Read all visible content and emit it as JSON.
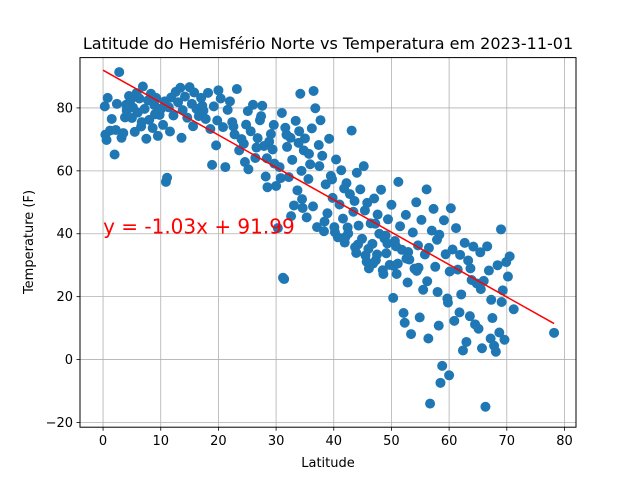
{
  "chart_data": {
    "type": "scatter",
    "title": "Latitude do Hemisfério Norte vs Temperatura em 2023-11-01",
    "xlabel": "Latitude",
    "ylabel": "Temperature (F)",
    "xlim": [
      -4,
      82
    ],
    "ylim": [
      -21.5,
      96
    ],
    "xticks": [
      0,
      10,
      20,
      30,
      40,
      50,
      60,
      70,
      80
    ],
    "yticks": [
      -20,
      0,
      20,
      40,
      60,
      80
    ],
    "grid": true,
    "point_color": "#1f77b4",
    "regression": {
      "slope": -1.03,
      "intercept": 91.99,
      "x_range": [
        0,
        78.2
      ],
      "color": "#ff0000",
      "equation_label": "y = -1.03x + 91.99",
      "label_position": [
        0,
        40
      ]
    },
    "points": [
      [
        0.3,
        80.5
      ],
      [
        0.4,
        71.5
      ],
      [
        0.6,
        69.8
      ],
      [
        0.8,
        83.2
      ],
      [
        1.2,
        72.8
      ],
      [
        1.5,
        76.5
      ],
      [
        2.0,
        65.2
      ],
      [
        2.4,
        81.3
      ],
      [
        2.8,
        91.4
      ],
      [
        3.2,
        70.5
      ],
      [
        3.5,
        72.0
      ],
      [
        3.8,
        77.0
      ],
      [
        4.1,
        79.2
      ],
      [
        4.5,
        83.8
      ],
      [
        4.8,
        82.6
      ],
      [
        5.0,
        76.8
      ],
      [
        5.2,
        80.1
      ],
      [
        5.5,
        72.4
      ],
      [
        5.8,
        84.7
      ],
      [
        6.0,
        78.5
      ],
      [
        6.3,
        83.0
      ],
      [
        6.6,
        74.1
      ],
      [
        6.9,
        86.8
      ],
      [
        7.2,
        79.7
      ],
      [
        7.5,
        70.2
      ],
      [
        7.8,
        82.4
      ],
      [
        8.0,
        76.2
      ],
      [
        8.3,
        84.5
      ],
      [
        8.6,
        73.6
      ],
      [
        8.9,
        80.9
      ],
      [
        9.2,
        83.2
      ],
      [
        9.5,
        71.1
      ],
      [
        9.8,
        77.8
      ],
      [
        10.1,
        79.8
      ],
      [
        10.4,
        74.6
      ],
      [
        10.7,
        82.1
      ],
      [
        10.9,
        56.5
      ],
      [
        11.1,
        57.8
      ],
      [
        11.4,
        80.2
      ],
      [
        11.8,
        83.3
      ],
      [
        12.2,
        77.6
      ],
      [
        12.6,
        85.1
      ],
      [
        13.0,
        81.8
      ],
      [
        13.4,
        86.4
      ],
      [
        13.8,
        79.3
      ],
      [
        14.2,
        83.6
      ],
      [
        14.6,
        76.9
      ],
      [
        15.0,
        86.6
      ],
      [
        15.4,
        81.3
      ],
      [
        15.8,
        84.9
      ],
      [
        16.2,
        79.7
      ],
      [
        16.6,
        77.4
      ],
      [
        17.0,
        83.2
      ],
      [
        17.4,
        79.1
      ],
      [
        17.8,
        76.5
      ],
      [
        18.2,
        84.8
      ],
      [
        18.6,
        73.3
      ],
      [
        18.9,
        61.9
      ],
      [
        19.2,
        80.5
      ],
      [
        19.6,
        68.1
      ],
      [
        20.0,
        85.6
      ],
      [
        20.4,
        83.0
      ],
      [
        20.8,
        73.9
      ],
      [
        21.2,
        61.2
      ],
      [
        21.6,
        79.4
      ],
      [
        22.0,
        82.1
      ],
      [
        22.4,
        75.5
      ],
      [
        22.8,
        71.6
      ],
      [
        23.2,
        86.0
      ],
      [
        23.6,
        66.5
      ],
      [
        24.0,
        70.1
      ],
      [
        24.4,
        68.6
      ],
      [
        24.8,
        74.7
      ],
      [
        25.2,
        60.5
      ],
      [
        25.6,
        72.6
      ],
      [
        26.0,
        81.0
      ],
      [
        26.4,
        64.1
      ],
      [
        26.8,
        70.4
      ],
      [
        27.2,
        76.1
      ],
      [
        27.6,
        80.7
      ],
      [
        27.9,
        67.9
      ],
      [
        28.2,
        58.2
      ],
      [
        28.5,
        54.8
      ],
      [
        28.8,
        69.3
      ],
      [
        29.1,
        71.7
      ],
      [
        29.4,
        66.8
      ],
      [
        29.7,
        62.3
      ],
      [
        30.0,
        55.2
      ],
      [
        30.3,
        41.8
      ],
      [
        30.6,
        61.2
      ],
      [
        31.0,
        78.4
      ],
      [
        31.2,
        26.0
      ],
      [
        31.4,
        25.6
      ],
      [
        31.6,
        73.7
      ],
      [
        31.9,
        67.6
      ],
      [
        32.2,
        58.0
      ],
      [
        32.5,
        70.5
      ],
      [
        32.8,
        63.5
      ],
      [
        33.1,
        49.0
      ],
      [
        33.4,
        75.9
      ],
      [
        33.7,
        53.8
      ],
      [
        34.0,
        72.6
      ],
      [
        34.2,
        84.5
      ],
      [
        34.4,
        60.0
      ],
      [
        34.6,
        48.2
      ],
      [
        34.8,
        66.5
      ],
      [
        35.0,
        70.3
      ],
      [
        35.3,
        45.2
      ],
      [
        35.6,
        57.4
      ],
      [
        35.9,
        62.1
      ],
      [
        36.2,
        73.5
      ],
      [
        36.5,
        85.4
      ],
      [
        36.8,
        79.9
      ],
      [
        37.1,
        42.1
      ],
      [
        37.4,
        68.2
      ],
      [
        37.7,
        76.1
      ],
      [
        38.0,
        64.8
      ],
      [
        38.3,
        40.8
      ],
      [
        38.6,
        55.7
      ],
      [
        38.9,
        46.5
      ],
      [
        39.2,
        70.2
      ],
      [
        39.5,
        58.4
      ],
      [
        39.8,
        51.4
      ],
      [
        40.1,
        42.1
      ],
      [
        40.4,
        63.6
      ],
      [
        40.7,
        38.9
      ],
      [
        41.0,
        49.3
      ],
      [
        41.3,
        60.2
      ],
      [
        41.6,
        44.8
      ],
      [
        41.9,
        37.2
      ],
      [
        42.2,
        56.1
      ],
      [
        42.5,
        40.1
      ],
      [
        42.8,
        52.6
      ],
      [
        43.1,
        72.8
      ],
      [
        43.4,
        47.0
      ],
      [
        43.7,
        35.7
      ],
      [
        44.0,
        59.4
      ],
      [
        44.3,
        42.6
      ],
      [
        44.6,
        54.1
      ],
      [
        44.9,
        38.4
      ],
      [
        45.2,
        61.5
      ],
      [
        45.5,
        33.1
      ],
      [
        45.8,
        49.8
      ],
      [
        46.1,
        29.0
      ],
      [
        46.4,
        43.3
      ],
      [
        46.7,
        36.8
      ],
      [
        47.0,
        51.2
      ],
      [
        47.3,
        31.6
      ],
      [
        47.6,
        46.1
      ],
      [
        47.9,
        40.0
      ],
      [
        48.2,
        54.0
      ],
      [
        48.5,
        28.4
      ],
      [
        48.8,
        38.5
      ],
      [
        49.1,
        33.8
      ],
      [
        49.4,
        44.6
      ],
      [
        49.7,
        30.1
      ],
      [
        50.0,
        49.2
      ],
      [
        50.3,
        19.6
      ],
      [
        50.6,
        37.7
      ],
      [
        50.9,
        27.2
      ],
      [
        51.2,
        56.5
      ],
      [
        51.5,
        42.4
      ],
      [
        51.8,
        34.9
      ],
      [
        52.1,
        14.8
      ],
      [
        52.3,
        11.7
      ],
      [
        52.5,
        46.0
      ],
      [
        52.8,
        24.5
      ],
      [
        53.1,
        31.8
      ],
      [
        53.4,
        8.1
      ],
      [
        53.7,
        40.4
      ],
      [
        54.0,
        28.9
      ],
      [
        54.3,
        50.0
      ],
      [
        54.6,
        36.3
      ],
      [
        54.9,
        13.4
      ],
      [
        55.2,
        44.4
      ],
      [
        55.5,
        22.2
      ],
      [
        55.8,
        33.4
      ],
      [
        56.1,
        54.1
      ],
      [
        56.4,
        6.7
      ],
      [
        56.7,
        -14.0
      ],
      [
        57.0,
        41.0
      ],
      [
        57.3,
        47.9
      ],
      [
        57.6,
        29.5
      ],
      [
        57.9,
        38.1
      ],
      [
        58.2,
        10.8
      ],
      [
        58.5,
        -7.4
      ],
      [
        58.8,
        -2.0
      ],
      [
        59.1,
        44.3
      ],
      [
        59.4,
        33.5
      ],
      [
        59.7,
        19.4
      ],
      [
        60.0,
        -5.0
      ],
      [
        60.3,
        48.1
      ],
      [
        60.6,
        35.0
      ],
      [
        60.9,
        12.3
      ],
      [
        61.2,
        41.8
      ],
      [
        61.5,
        28.6
      ],
      [
        61.8,
        15.0
      ],
      [
        62.1,
        20.7
      ],
      [
        62.4,
        2.9
      ],
      [
        62.7,
        37.1
      ],
      [
        63.0,
        5.6
      ],
      [
        63.3,
        31.5
      ],
      [
        63.6,
        13.8
      ],
      [
        63.9,
        25.3
      ],
      [
        64.2,
        35.9
      ],
      [
        64.5,
        11.2
      ],
      [
        64.8,
        24.2
      ],
      [
        65.1,
        9.8
      ],
      [
        65.4,
        34.1
      ],
      [
        65.7,
        3.6
      ],
      [
        66.0,
        25.0
      ],
      [
        66.3,
        -15.0
      ],
      [
        66.6,
        36.0
      ],
      [
        66.9,
        28.3
      ],
      [
        67.2,
        6.7
      ],
      [
        67.5,
        13.2
      ],
      [
        67.8,
        4.4
      ],
      [
        68.1,
        2.5
      ],
      [
        68.4,
        30.0
      ],
      [
        68.7,
        8.6
      ],
      [
        69.0,
        41.4
      ],
      [
        69.3,
        22.0
      ],
      [
        69.6,
        6.3
      ],
      [
        69.9,
        31.0
      ],
      [
        70.2,
        26.4
      ],
      [
        70.5,
        32.8
      ],
      [
        71.2,
        16.0
      ],
      [
        78.2,
        8.5
      ],
      [
        2.2,
        73.0
      ],
      [
        4.0,
        81.0
      ],
      [
        6.7,
        75.5
      ],
      [
        9.0,
        78.0
      ],
      [
        11.6,
        72.5
      ],
      [
        13.6,
        70.5
      ],
      [
        15.6,
        74.2
      ],
      [
        17.2,
        80.7
      ],
      [
        19.8,
        76.0
      ],
      [
        22.6,
        74.1
      ],
      [
        24.6,
        62.8
      ],
      [
        26.6,
        67.4
      ],
      [
        28.4,
        64.0
      ],
      [
        30.8,
        57.7
      ],
      [
        32.6,
        45.6
      ],
      [
        34.5,
        51.0
      ],
      [
        36.4,
        48.7
      ],
      [
        38.4,
        43.9
      ],
      [
        40.2,
        40.5
      ],
      [
        42.0,
        38.9
      ],
      [
        43.9,
        33.9
      ],
      [
        45.7,
        31.1
      ],
      [
        47.5,
        33.4
      ],
      [
        49.3,
        36.9
      ],
      [
        51.1,
        30.5
      ],
      [
        52.9,
        34.2
      ],
      [
        54.7,
        29.2
      ],
      [
        56.5,
        35.5
      ],
      [
        58.3,
        39.7
      ],
      [
        60.1,
        28.0
      ],
      [
        61.9,
        33.3
      ],
      [
        63.7,
        29.0
      ],
      [
        65.5,
        22.4
      ],
      [
        67.3,
        19.0
      ],
      [
        69.1,
        18.3
      ],
      [
        25.1,
        79.0
      ],
      [
        27.4,
        77.4
      ],
      [
        29.6,
        74.6
      ],
      [
        31.8,
        71.5
      ],
      [
        33.9,
        68.9
      ],
      [
        35.7,
        65.4
      ],
      [
        37.5,
        61.5
      ],
      [
        39.7,
        57.3
      ],
      [
        41.8,
        54.4
      ],
      [
        43.6,
        50.4
      ],
      [
        45.4,
        47.4
      ],
      [
        47.2,
        43.2
      ],
      [
        49.0,
        39.4
      ],
      [
        50.8,
        36.0
      ],
      [
        52.6,
        32.1
      ],
      [
        54.4,
        28.2
      ],
      [
        56.2,
        24.9
      ],
      [
        58.0,
        21.5
      ],
      [
        59.8,
        18.1
      ],
      [
        46.8,
        30.5
      ],
      [
        48.6,
        27.2
      ],
      [
        50.4,
        29.8
      ],
      [
        44.2,
        36.6
      ],
      [
        46.0,
        35.2
      ],
      [
        42.4,
        42.0
      ]
    ]
  }
}
